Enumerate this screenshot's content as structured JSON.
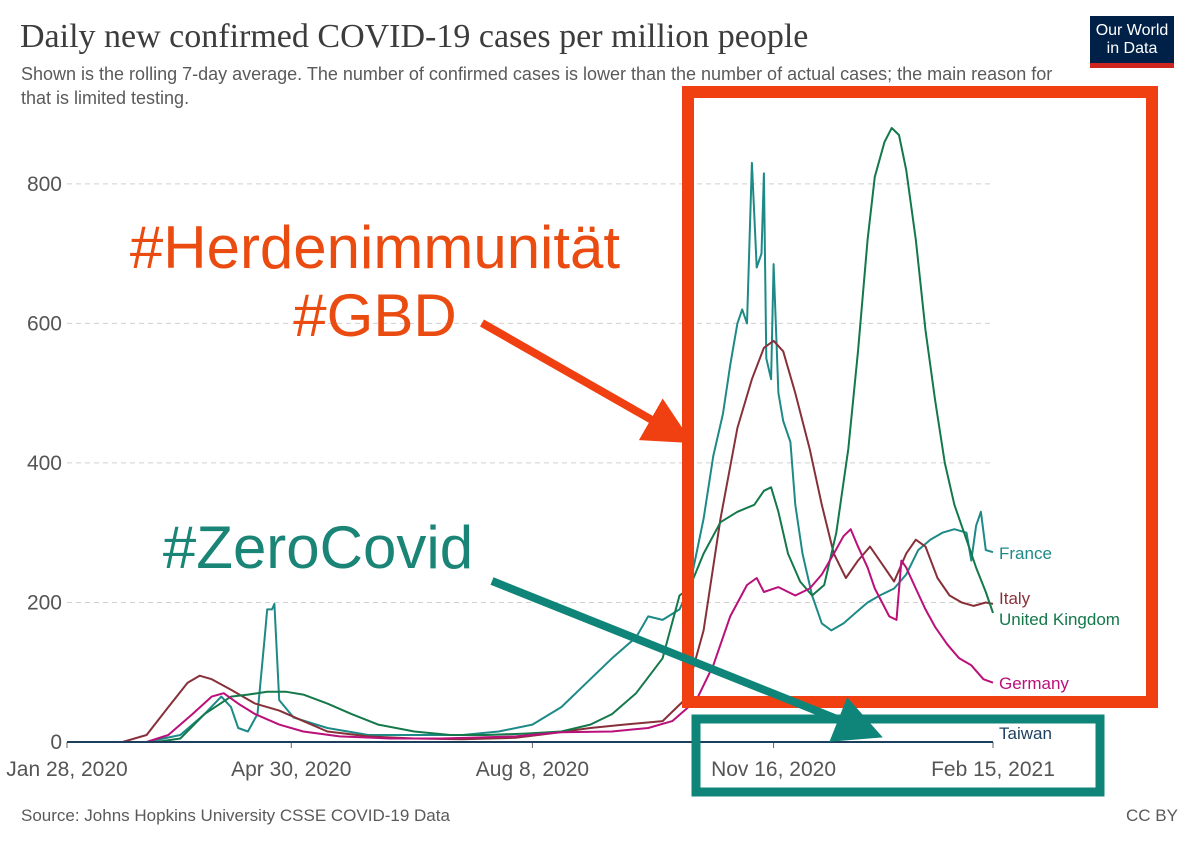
{
  "header": {
    "title": "Daily new confirmed COVID-19 cases per million people",
    "subtitle": "Shown is the rolling 7-day average. The number of confirmed cases is lower than the number of actual cases; the main reason for that is limited testing.",
    "logo_line1": "Our World",
    "logo_line2": "in Data"
  },
  "footer": {
    "source": "Source: Johns Hopkins University CSSE COVID-19 Data",
    "license": "CC BY"
  },
  "annotations": {
    "herd_line1": "#Herdenimmunität",
    "herd_line2": "#GBD",
    "zero": "#ZeroCovid",
    "herd_color": "#ea4b10",
    "zero_color": "#1a8577"
  },
  "chart_data": {
    "type": "line",
    "title": "Daily new confirmed COVID-19 cases per million people",
    "xlabel": "",
    "ylabel": "",
    "x_ticks": [
      "Jan 28, 2020",
      "Apr 30, 2020",
      "Aug 8, 2020",
      "Nov 16, 2020",
      "Feb 15, 2021"
    ],
    "y_ticks": [
      0,
      200,
      400,
      600,
      800
    ],
    "ylim": [
      0,
      880
    ],
    "x_range": [
      "2020-01-28",
      "2021-02-15"
    ],
    "grid": true,
    "legend": "inline-right",
    "series": [
      {
        "name": "France",
        "color": "#1d8a87",
        "points": [
          [
            "2020-01-28",
            0
          ],
          [
            "2020-03-01",
            0
          ],
          [
            "2020-03-15",
            10
          ],
          [
            "2020-03-25",
            40
          ],
          [
            "2020-04-01",
            65
          ],
          [
            "2020-04-05",
            50
          ],
          [
            "2020-04-08",
            20
          ],
          [
            "2020-04-12",
            15
          ],
          [
            "2020-04-16",
            40
          ],
          [
            "2020-04-19",
            150
          ],
          [
            "2020-04-20",
            190
          ],
          [
            "2020-04-22",
            190
          ],
          [
            "2020-04-23",
            198
          ],
          [
            "2020-04-25",
            60
          ],
          [
            "2020-05-01",
            35
          ],
          [
            "2020-05-15",
            20
          ],
          [
            "2020-06-01",
            10
          ],
          [
            "2020-06-20",
            10
          ],
          [
            "2020-07-10",
            10
          ],
          [
            "2020-07-25",
            15
          ],
          [
            "2020-08-08",
            25
          ],
          [
            "2020-08-20",
            50
          ],
          [
            "2020-09-01",
            90
          ],
          [
            "2020-09-10",
            120
          ],
          [
            "2020-09-20",
            150
          ],
          [
            "2020-09-25",
            180
          ],
          [
            "2020-10-01",
            175
          ],
          [
            "2020-10-08",
            190
          ],
          [
            "2020-10-12",
            220
          ],
          [
            "2020-10-18",
            320
          ],
          [
            "2020-10-22",
            410
          ],
          [
            "2020-10-26",
            470
          ],
          [
            "2020-10-29",
            540
          ],
          [
            "2020-11-01",
            600
          ],
          [
            "2020-11-03",
            620
          ],
          [
            "2020-11-05",
            600
          ],
          [
            "2020-11-07",
            830
          ],
          [
            "2020-11-09",
            680
          ],
          [
            "2020-11-11",
            700
          ],
          [
            "2020-11-12",
            815
          ],
          [
            "2020-11-13",
            550
          ],
          [
            "2020-11-15",
            520
          ],
          [
            "2020-11-16",
            685
          ],
          [
            "2020-11-18",
            500
          ],
          [
            "2020-11-20",
            460
          ],
          [
            "2020-11-23",
            430
          ],
          [
            "2020-11-25",
            340
          ],
          [
            "2020-11-28",
            270
          ],
          [
            "2020-12-02",
            210
          ],
          [
            "2020-12-06",
            170
          ],
          [
            "2020-12-10",
            160
          ],
          [
            "2020-12-15",
            170
          ],
          [
            "2020-12-20",
            185
          ],
          [
            "2020-12-25",
            200
          ],
          [
            "2020-12-30",
            210
          ],
          [
            "2021-01-05",
            220
          ],
          [
            "2021-01-10",
            240
          ],
          [
            "2021-01-15",
            275
          ],
          [
            "2021-01-20",
            290
          ],
          [
            "2021-01-25",
            300
          ],
          [
            "2021-01-30",
            305
          ],
          [
            "2021-02-04",
            300
          ],
          [
            "2021-02-06",
            260
          ],
          [
            "2021-02-08",
            310
          ],
          [
            "2021-02-10",
            330
          ],
          [
            "2021-02-12",
            275
          ],
          [
            "2021-02-15",
            272
          ]
        ]
      },
      {
        "name": "Italy",
        "color": "#883039",
        "points": [
          [
            "2020-01-28",
            0
          ],
          [
            "2020-02-20",
            0
          ],
          [
            "2020-03-01",
            10
          ],
          [
            "2020-03-10",
            50
          ],
          [
            "2020-03-18",
            85
          ],
          [
            "2020-03-23",
            95
          ],
          [
            "2020-03-28",
            90
          ],
          [
            "2020-04-05",
            75
          ],
          [
            "2020-04-15",
            55
          ],
          [
            "2020-04-25",
            45
          ],
          [
            "2020-05-05",
            30
          ],
          [
            "2020-05-15",
            15
          ],
          [
            "2020-06-01",
            8
          ],
          [
            "2020-06-20",
            5
          ],
          [
            "2020-07-10",
            4
          ],
          [
            "2020-08-01",
            6
          ],
          [
            "2020-08-15",
            12
          ],
          [
            "2020-09-01",
            20
          ],
          [
            "2020-09-15",
            25
          ],
          [
            "2020-10-01",
            30
          ],
          [
            "2020-10-10",
            60
          ],
          [
            "2020-10-18",
            160
          ],
          [
            "2020-10-25",
            320
          ],
          [
            "2020-11-01",
            450
          ],
          [
            "2020-11-07",
            520
          ],
          [
            "2020-11-12",
            565
          ],
          [
            "2020-11-16",
            575
          ],
          [
            "2020-11-20",
            560
          ],
          [
            "2020-11-25",
            500
          ],
          [
            "2020-12-01",
            420
          ],
          [
            "2020-12-06",
            340
          ],
          [
            "2020-12-11",
            270
          ],
          [
            "2020-12-16",
            235
          ],
          [
            "2020-12-21",
            260
          ],
          [
            "2020-12-26",
            280
          ],
          [
            "2020-12-31",
            255
          ],
          [
            "2021-01-05",
            230
          ],
          [
            "2021-01-10",
            270
          ],
          [
            "2021-01-14",
            290
          ],
          [
            "2021-01-18",
            280
          ],
          [
            "2021-01-23",
            235
          ],
          [
            "2021-01-28",
            210
          ],
          [
            "2021-02-02",
            200
          ],
          [
            "2021-02-07",
            195
          ],
          [
            "2021-02-12",
            200
          ],
          [
            "2021-02-15",
            198
          ]
        ]
      },
      {
        "name": "United Kingdom",
        "color": "#13784a",
        "points": [
          [
            "2020-01-28",
            0
          ],
          [
            "2020-03-05",
            0
          ],
          [
            "2020-03-15",
            5
          ],
          [
            "2020-03-25",
            40
          ],
          [
            "2020-04-05",
            65
          ],
          [
            "2020-04-12",
            68
          ],
          [
            "2020-04-20",
            72
          ],
          [
            "2020-04-28",
            72
          ],
          [
            "2020-05-05",
            68
          ],
          [
            "2020-05-15",
            55
          ],
          [
            "2020-05-25",
            40
          ],
          [
            "2020-06-05",
            25
          ],
          [
            "2020-06-20",
            15
          ],
          [
            "2020-07-05",
            10
          ],
          [
            "2020-07-20",
            10
          ],
          [
            "2020-08-05",
            12
          ],
          [
            "2020-08-20",
            15
          ],
          [
            "2020-09-01",
            25
          ],
          [
            "2020-09-10",
            40
          ],
          [
            "2020-09-20",
            70
          ],
          [
            "2020-10-01",
            120
          ],
          [
            "2020-10-08",
            210
          ],
          [
            "2020-10-12",
            220
          ],
          [
            "2020-10-18",
            270
          ],
          [
            "2020-10-25",
            315
          ],
          [
            "2020-11-01",
            330
          ],
          [
            "2020-11-08",
            340
          ],
          [
            "2020-11-12",
            360
          ],
          [
            "2020-11-15",
            365
          ],
          [
            "2020-11-18",
            330
          ],
          [
            "2020-11-22",
            270
          ],
          [
            "2020-11-27",
            230
          ],
          [
            "2020-12-02",
            210
          ],
          [
            "2020-12-07",
            225
          ],
          [
            "2020-12-12",
            300
          ],
          [
            "2020-12-17",
            420
          ],
          [
            "2020-12-21",
            560
          ],
          [
            "2020-12-25",
            720
          ],
          [
            "2020-12-28",
            810
          ],
          [
            "2021-01-01",
            860
          ],
          [
            "2021-01-04",
            880
          ],
          [
            "2021-01-07",
            870
          ],
          [
            "2021-01-10",
            820
          ],
          [
            "2021-01-14",
            720
          ],
          [
            "2021-01-18",
            590
          ],
          [
            "2021-01-22",
            490
          ],
          [
            "2021-01-26",
            400
          ],
          [
            "2021-01-30",
            340
          ],
          [
            "2021-02-04",
            290
          ],
          [
            "2021-02-08",
            250
          ],
          [
            "2021-02-12",
            215
          ],
          [
            "2021-02-15",
            185
          ]
        ]
      },
      {
        "name": "Germany",
        "color": "#ba107a",
        "points": [
          [
            "2020-01-28",
            0
          ],
          [
            "2020-03-01",
            0
          ],
          [
            "2020-03-10",
            10
          ],
          [
            "2020-03-20",
            40
          ],
          [
            "2020-03-28",
            65
          ],
          [
            "2020-04-02",
            70
          ],
          [
            "2020-04-08",
            55
          ],
          [
            "2020-04-15",
            40
          ],
          [
            "2020-04-25",
            25
          ],
          [
            "2020-05-05",
            15
          ],
          [
            "2020-05-20",
            8
          ],
          [
            "2020-06-10",
            5
          ],
          [
            "2020-07-01",
            5
          ],
          [
            "2020-08-01",
            8
          ],
          [
            "2020-08-20",
            14
          ],
          [
            "2020-09-10",
            15
          ],
          [
            "2020-09-25",
            20
          ],
          [
            "2020-10-05",
            30
          ],
          [
            "2020-10-15",
            60
          ],
          [
            "2020-10-22",
            110
          ],
          [
            "2020-10-29",
            180
          ],
          [
            "2020-11-05",
            225
          ],
          [
            "2020-11-09",
            235
          ],
          [
            "2020-11-12",
            215
          ],
          [
            "2020-11-18",
            222
          ],
          [
            "2020-11-25",
            210
          ],
          [
            "2020-12-01",
            220
          ],
          [
            "2020-12-06",
            240
          ],
          [
            "2020-12-11",
            270
          ],
          [
            "2020-12-15",
            295
          ],
          [
            "2020-12-18",
            305
          ],
          [
            "2020-12-21",
            280
          ],
          [
            "2020-12-25",
            250
          ],
          [
            "2020-12-28",
            220
          ],
          [
            "2020-12-31",
            200
          ],
          [
            "2021-01-03",
            180
          ],
          [
            "2021-01-06",
            175
          ],
          [
            "2021-01-08",
            260
          ],
          [
            "2021-01-10",
            250
          ],
          [
            "2021-01-14",
            220
          ],
          [
            "2021-01-18",
            190
          ],
          [
            "2021-01-22",
            165
          ],
          [
            "2021-01-27",
            140
          ],
          [
            "2021-02-01",
            120
          ],
          [
            "2021-02-06",
            110
          ],
          [
            "2021-02-11",
            90
          ],
          [
            "2021-02-15",
            85
          ]
        ]
      },
      {
        "name": "Taiwan",
        "color": "#1c3f5e",
        "points": [
          [
            "2020-01-28",
            0
          ],
          [
            "2021-02-15",
            0
          ]
        ]
      }
    ]
  }
}
